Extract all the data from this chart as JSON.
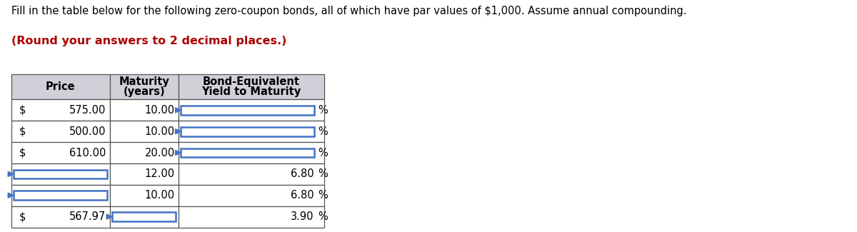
{
  "title_line1": "Fill in the table below for the following zero-coupon bonds, all of which have par values of $1,000. Assume annual compounding.",
  "title_line2": "(Round your answers to 2 decimal places.)",
  "title_line1_color": "#000000",
  "title_line2_color": "#aa0000",
  "header_bg": "#d0d0d8",
  "row_bg": "#ffffff",
  "border_color": "#555555",
  "input_border_color": "#4472c4",
  "font_size": 10.5,
  "rows": [
    [
      "$",
      "575.00",
      "10.00",
      "",
      "%"
    ],
    [
      "$",
      "500.00",
      "10.00",
      "",
      "%"
    ],
    [
      "$",
      "610.00",
      "20.00",
      "",
      "%"
    ],
    [
      "",
      "",
      "12.00",
      "6.80",
      "%"
    ],
    [
      "",
      "",
      "10.00",
      "6.80",
      "%"
    ],
    [
      "$",
      "567.97",
      "",
      "3.90",
      "%"
    ]
  ],
  "input_cells": {
    "ytm_rows": [
      0,
      1,
      2
    ],
    "price_rows": [
      3,
      4
    ],
    "maturity_rows": [
      5
    ]
  }
}
